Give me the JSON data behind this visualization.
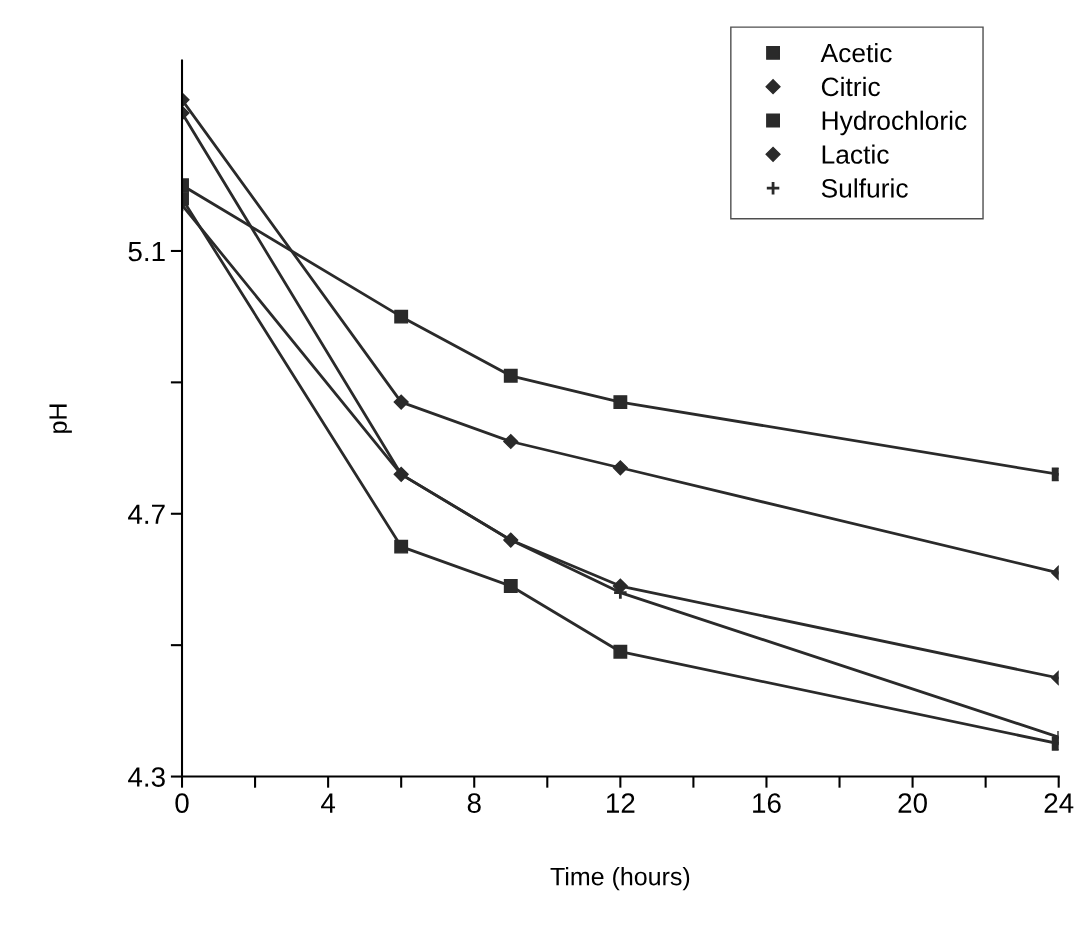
{
  "chart_data": {
    "type": "line",
    "xlabel": "Time (hours)",
    "ylabel": "pH",
    "x": [
      0,
      6,
      9,
      12,
      24
    ],
    "series": [
      {
        "name": "Acetic",
        "color": "#2a2a2a",
        "marker": "square",
        "values": [
          5.2,
          5.0,
          4.91,
          4.87,
          4.76
        ]
      },
      {
        "name": "Citric",
        "color": "#2a2a2a",
        "marker": "diamond",
        "values": [
          5.33,
          4.87,
          4.81,
          4.77,
          4.61
        ]
      },
      {
        "name": "Hydrochloric",
        "color": "#2a2a2a",
        "marker": "square",
        "values": [
          5.18,
          4.65,
          4.59,
          4.49,
          4.35
        ]
      },
      {
        "name": "Lactic",
        "color": "#2a2a2a",
        "marker": "diamond",
        "values": [
          5.31,
          4.76,
          4.66,
          4.59,
          4.45
        ]
      },
      {
        "name": "Sulfuric",
        "color": "#2a2a2a",
        "marker": "cross",
        "values": [
          5.17,
          4.76,
          4.66,
          4.58,
          4.36
        ]
      }
    ],
    "xlim": [
      0,
      24
    ],
    "xticks": [
      0,
      {
        "value": 2,
        "label": null
      },
      4,
      {
        "value": 6,
        "label": null
      },
      8,
      {
        "value": 10,
        "label": null
      },
      12,
      {
        "value": 14,
        "label": null
      },
      16,
      {
        "value": 18,
        "label": null
      },
      20,
      {
        "value": 22,
        "label": null
      },
      24
    ],
    "ylim": [
      4.3,
      5.39
    ],
    "yticks": [
      4.3,
      {
        "value": 4.5,
        "label": null
      },
      4.7,
      {
        "value": 4.9,
        "label": null
      },
      5.1
    ],
    "grid": false,
    "legend": "top right",
    "line_style": "solid"
  }
}
